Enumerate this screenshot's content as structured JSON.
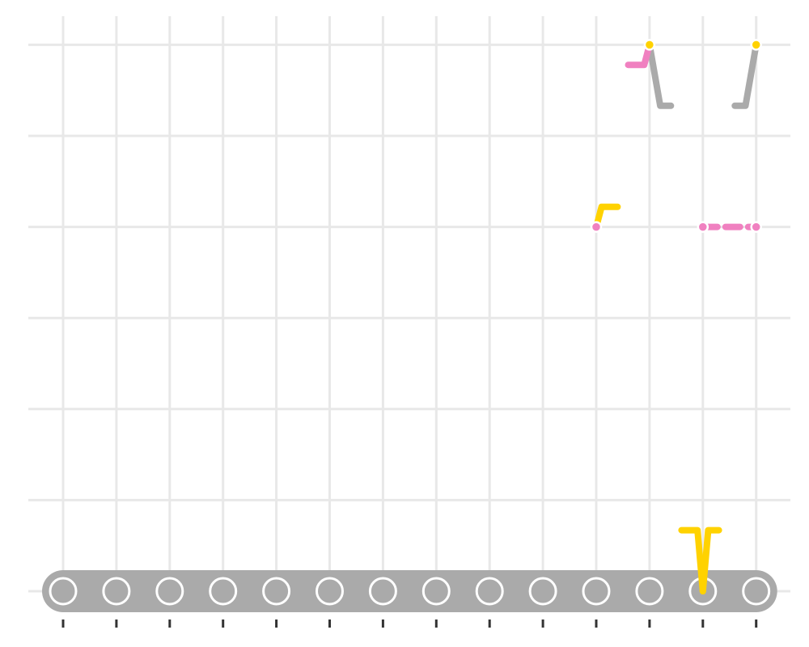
{
  "chart_data": {
    "type": "line",
    "title": "",
    "xlabel": "",
    "ylabel": "",
    "x_count": 14,
    "ylim": [
      0,
      6
    ],
    "grid": true,
    "legend": "none",
    "tick_labels_shown": false,
    "colors": {
      "grid": "#e8e8e8",
      "axis_ticks": "#333333",
      "gray": "#aaaaaa",
      "pink": "#f080c0",
      "yellow": "#ffd200",
      "node_fill": "#aaaaaa",
      "node_stroke": "#ffffff"
    },
    "baseline_nodes": [
      0,
      1,
      2,
      3,
      4,
      5,
      6,
      7,
      8,
      9,
      10,
      11,
      12,
      13
    ],
    "segments": [
      {
        "color": "gray",
        "points": [
          [
            11,
            6
          ],
          [
            11.2,
            5.33
          ],
          [
            11.4,
            5.33
          ]
        ]
      },
      {
        "color": "gray",
        "points": [
          [
            13,
            6
          ],
          [
            12.8,
            5.33
          ],
          [
            12.6,
            5.33
          ]
        ]
      },
      {
        "color": "pink",
        "points": [
          [
            11,
            6
          ],
          [
            10.9,
            5.78
          ],
          [
            10.6,
            5.78
          ]
        ]
      },
      {
        "color": "yellow",
        "points": [
          [
            10,
            4
          ],
          [
            10.1,
            4.22
          ],
          [
            10.4,
            4.22
          ]
        ]
      },
      {
        "color": "pink",
        "points": [
          [
            12,
            4
          ],
          [
            13,
            4
          ]
        ],
        "dashed": true
      },
      {
        "color": "yellow",
        "points": [
          [
            12,
            0
          ],
          [
            12.1,
            0.67
          ],
          [
            12.3,
            0.67
          ]
        ]
      },
      {
        "color": "yellow",
        "points": [
          [
            12,
            0
          ],
          [
            11.9,
            0.67
          ],
          [
            11.6,
            0.67
          ]
        ]
      }
    ],
    "markers": [
      {
        "x": 11,
        "y": 6,
        "color": "yellow"
      },
      {
        "x": 13,
        "y": 6,
        "color": "yellow"
      },
      {
        "x": 10,
        "y": 4,
        "color": "pink"
      },
      {
        "x": 12,
        "y": 4,
        "color": "pink"
      },
      {
        "x": 13,
        "y": 4,
        "color": "pink"
      }
    ]
  }
}
